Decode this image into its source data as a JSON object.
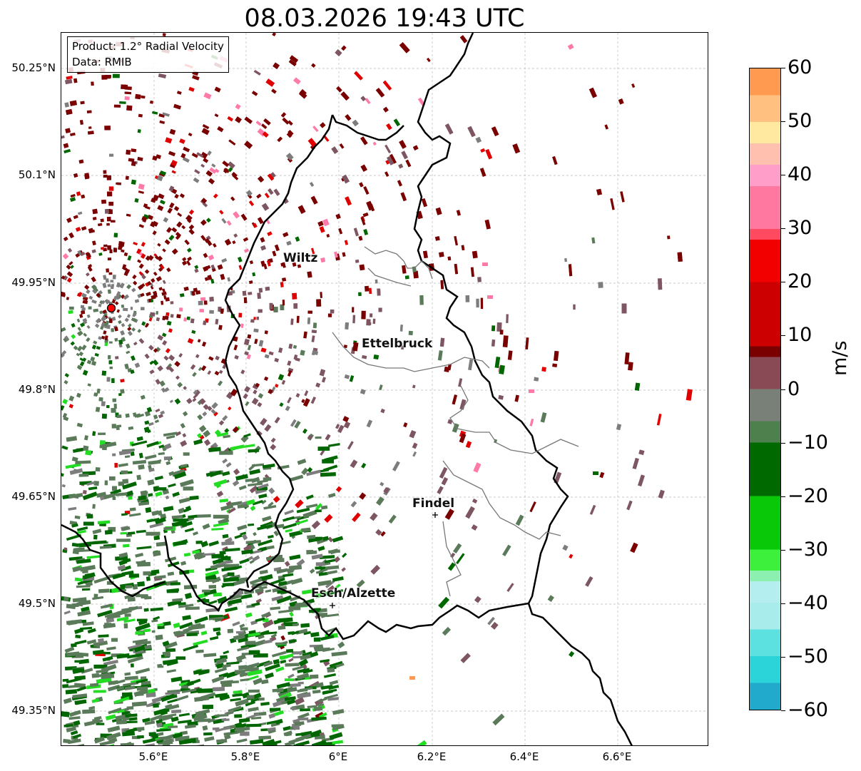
{
  "title": "08.03.2026 19:43 UTC",
  "info": {
    "product": "Product: 1.2° Radial Velocity",
    "data": "Data: RMIB"
  },
  "y_ticks": [
    "50.25°N",
    "50.1°N",
    "49.95°N",
    "49.8°N",
    "49.65°N",
    "49.5°N",
    "49.35°N"
  ],
  "x_ticks": [
    "5.6°E",
    "5.8°E",
    "6°E",
    "6.2°E",
    "6.4°E",
    "6.6°E"
  ],
  "cities": [
    "Wiltz",
    "Ettelbruck",
    "Findel",
    "Esch/Alzette"
  ],
  "colorbar": {
    "ticks": [
      "60",
      "50",
      "40",
      "30",
      "20",
      "10",
      "0",
      "−10",
      "−20",
      "−30",
      "−40",
      "−50",
      "−60"
    ],
    "unit": "m/s",
    "range": [
      -60,
      60
    ],
    "stops": [
      {
        "v": -60,
        "color": "#1f77c4"
      },
      {
        "v": -55,
        "color": "#22aacc"
      },
      {
        "v": -50,
        "color": "#2ad4d8"
      },
      {
        "v": -45,
        "color": "#5de0e0"
      },
      {
        "v": -40,
        "color": "#a8ecec"
      },
      {
        "v": -36,
        "color": "#b4eeee"
      },
      {
        "v": -34,
        "color": "#8cf0b0"
      },
      {
        "v": -30,
        "color": "#3cf03c"
      },
      {
        "v": -20,
        "color": "#08c808"
      },
      {
        "v": -10,
        "color": "#006a00"
      },
      {
        "v": -6,
        "color": "#4e804e"
      },
      {
        "v": 0,
        "color": "#788078"
      },
      {
        "v": 6,
        "color": "#8a4a55"
      },
      {
        "v": 8,
        "color": "#7a0000"
      },
      {
        "v": 20,
        "color": "#cc0000"
      },
      {
        "v": 28,
        "color": "#f20000"
      },
      {
        "v": 30,
        "color": "#ff4a60"
      },
      {
        "v": 38,
        "color": "#ff78a0"
      },
      {
        "v": 42,
        "color": "#ff9ec8"
      },
      {
        "v": 46,
        "color": "#ffc0b0"
      },
      {
        "v": 50,
        "color": "#ffe8a0"
      },
      {
        "v": 55,
        "color": "#ffc080"
      },
      {
        "v": 60,
        "color": "#ff9a50"
      }
    ]
  },
  "colors": {
    "green_dark": "#006600",
    "green_gray": "#5a7a5a",
    "gray": "#7d7d7d",
    "mauve": "#7e5661",
    "maroon": "#7a0000",
    "red": "#e00000",
    "pink": "#ff7aa8",
    "bright_green": "#22dd22",
    "orange": "#ff9a50",
    "radar_site": "#ff0000"
  }
}
